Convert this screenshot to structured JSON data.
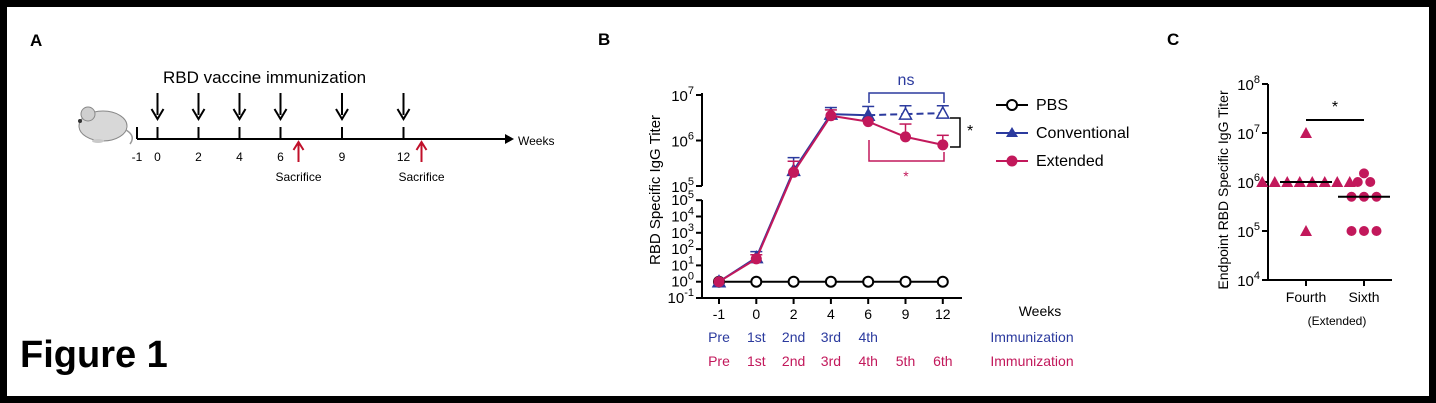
{
  "figure_label": "Figure 1",
  "panel_a": {
    "letter": "A",
    "title": "RBD vaccine immunization",
    "axis_label": "Weeks",
    "ticks": [
      "-1",
      "0",
      "2",
      "4",
      "6",
      "9",
      "12"
    ],
    "immunization_weeks": [
      "0",
      "2",
      "4",
      "6",
      "9",
      "12"
    ],
    "sacrifice_label": "Sacrifice",
    "sacrifice_weeks": [
      "6",
      "12"
    ],
    "icon": "mouse-icon",
    "colors": {
      "arrow": "#000000",
      "sacrifice": "#c0102a"
    }
  },
  "panel_b": {
    "letter": "B",
    "ylabel": "RBD Specific IgG  Titer",
    "xlabel": "Weeks",
    "x_ticks": [
      "-1",
      "0",
      "2",
      "4",
      "6",
      "9",
      "12"
    ],
    "upper_yticks": [
      "10",
      "10",
      "10"
    ],
    "upper_yexp": [
      "5",
      "6",
      "7"
    ],
    "lower_yticks": [
      "10",
      "10",
      "10",
      "10",
      "10",
      "10",
      "10"
    ],
    "lower_yexp": [
      "-1",
      "0",
      "1",
      "2",
      "3",
      "4",
      "5"
    ],
    "conventional_row_label": "Immunization",
    "conventional_row": [
      "Pre",
      "1st",
      "2nd",
      "3rd",
      "4th"
    ],
    "extended_row_label": "Immunization",
    "extended_row": [
      "Pre",
      "1st",
      "2nd",
      "3rd",
      "4th",
      "5th",
      "6th"
    ],
    "sig_top": "ns",
    "sig_right": "*",
    "sig_bottom": "*",
    "colors": {
      "pbs": "#000000",
      "conventional": "#2b3a9e",
      "extended": "#c2185b"
    }
  },
  "panel_c": {
    "letter": "C",
    "ylabel": "Endpoint RBD Specific IgG  Titer",
    "yticks": [
      "10",
      "10",
      "10",
      "10",
      "10"
    ],
    "yexp": [
      "4",
      "5",
      "6",
      "7",
      "8"
    ],
    "categories": [
      "Fourth",
      "Sixth"
    ],
    "subtitle": "(Extended)",
    "sig": "*",
    "colors": {
      "points": "#c2185b"
    }
  },
  "chart_data": [
    {
      "type": "line",
      "xlabel": "Weeks",
      "ylabel": "RBD Specific IgG  Titer",
      "x": [
        -1,
        0,
        2,
        4,
        6,
        9,
        12
      ],
      "yscale": "log",
      "ylim": [
        0.1,
        10000000
      ],
      "axis_break": [
        100000,
        100000
      ],
      "series": [
        {
          "name": "PBS",
          "marker": "open-circle",
          "color": "#000000",
          "x": [
            -1,
            0,
            2,
            4,
            6,
            9,
            12
          ],
          "values": [
            1,
            1,
            1,
            1,
            1,
            1,
            1
          ]
        },
        {
          "name": "Conventional",
          "marker": "triangle",
          "color": "#2b3a9e",
          "x": [
            -1,
            0,
            2,
            4,
            6,
            9,
            12
          ],
          "values": [
            1,
            30,
            220000,
            3800000,
            3600000,
            3800000,
            4000000
          ],
          "error": [
            0,
            40,
            200000,
            1500000,
            2000000,
            2000000,
            1800000
          ],
          "open_after_x": 6
        },
        {
          "name": "Extended",
          "marker": "circle",
          "color": "#c2185b",
          "x": [
            -1,
            0,
            2,
            4,
            6,
            9,
            12
          ],
          "values": [
            1,
            25,
            200000,
            3500000,
            2600000,
            1200000,
            800000
          ],
          "error": [
            0,
            20,
            150000,
            1200000,
            0,
            1100000,
            500000
          ]
        }
      ],
      "legend": "right"
    },
    {
      "type": "scatter",
      "ylabel": "Endpoint RBD Specific IgG  Titer",
      "yscale": "log",
      "ylim": [
        10000,
        100000000
      ],
      "categories": [
        "Fourth",
        "Sixth"
      ],
      "series": [
        {
          "name": "Fourth",
          "marker": "triangle",
          "color": "#c2185b",
          "values": [
            10000000,
            1000000,
            1000000,
            1000000,
            1000000,
            1000000,
            1000000,
            1000000,
            1000000,
            100000
          ],
          "median": 1000000
        },
        {
          "name": "Sixth",
          "marker": "circle",
          "color": "#c2185b",
          "values": [
            1000000,
            1000000,
            500000,
            500000,
            500000,
            100000,
            100000,
            100000,
            1500000
          ],
          "median": 500000
        }
      ]
    }
  ]
}
